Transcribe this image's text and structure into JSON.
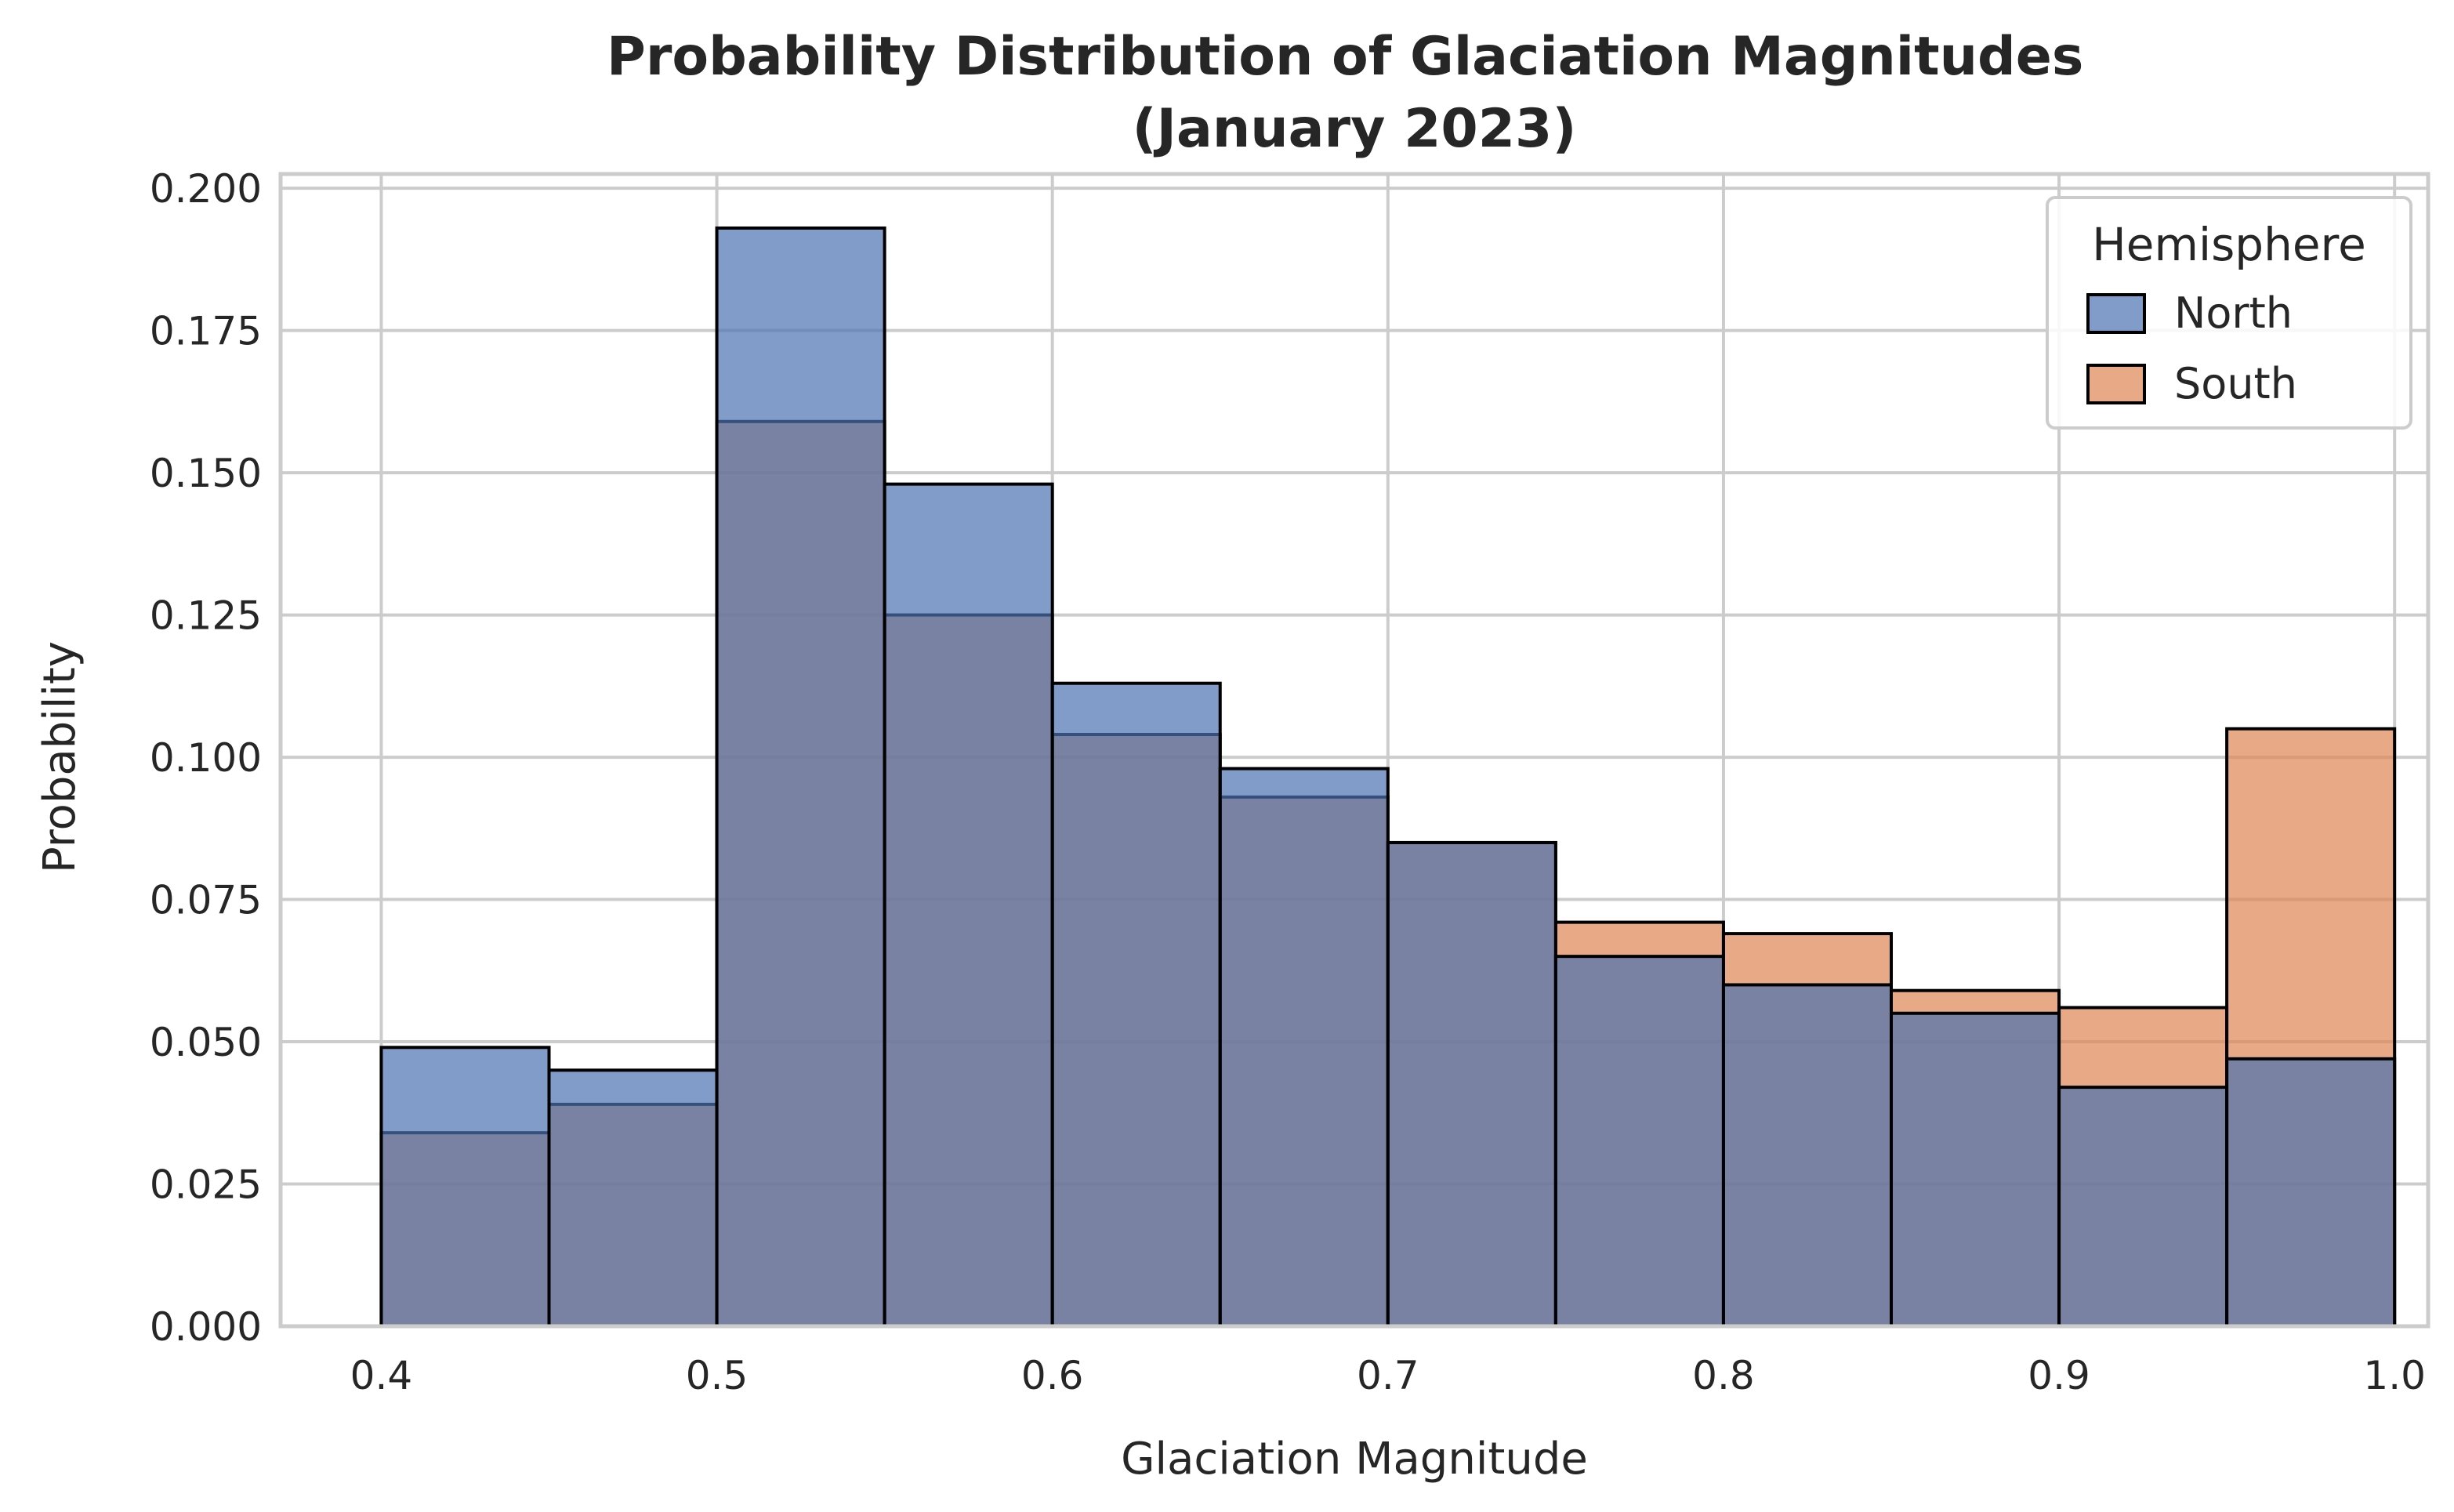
{
  "chart_data": {
    "type": "bar",
    "title": "Probability Distribution of Glaciation Magnitudes\n(January 2023)",
    "xlabel": "Glaciation Magnitude",
    "ylabel": "Probability",
    "xlim": [
      0.37,
      1.01
    ],
    "ylim": [
      0,
      0.2025
    ],
    "xticks": [
      0.4,
      0.5,
      0.6,
      0.7,
      0.8,
      0.9,
      1.0
    ],
    "xtick_labels": [
      "0.4",
      "0.5",
      "0.6",
      "0.7",
      "0.8",
      "0.9",
      "1.0"
    ],
    "yticks": [
      0,
      0.025,
      0.05,
      0.075,
      0.1,
      0.125,
      0.15,
      0.175,
      0.2
    ],
    "ytick_labels": [
      "0.000",
      "0.025",
      "0.050",
      "0.075",
      "0.100",
      "0.125",
      "0.150",
      "0.175",
      "0.200"
    ],
    "bin_edges": [
      0.4,
      0.45,
      0.5,
      0.55,
      0.6,
      0.65,
      0.7,
      0.75,
      0.8,
      0.85,
      0.9,
      0.95,
      1.0
    ],
    "grid": true,
    "legend": {
      "title": "Hemisphere",
      "placement": "top-right"
    },
    "series": [
      {
        "name": "North",
        "color": "#4c72b0",
        "values": [
          0.049,
          0.045,
          0.193,
          0.148,
          0.113,
          0.098,
          0.085,
          0.065,
          0.06,
          0.055,
          0.042,
          0.047
        ]
      },
      {
        "name": "South",
        "color": "#dd8452",
        "values": [
          0.034,
          0.039,
          0.159,
          0.125,
          0.104,
          0.093,
          0.085,
          0.071,
          0.069,
          0.059,
          0.056,
          0.105
        ]
      }
    ]
  }
}
